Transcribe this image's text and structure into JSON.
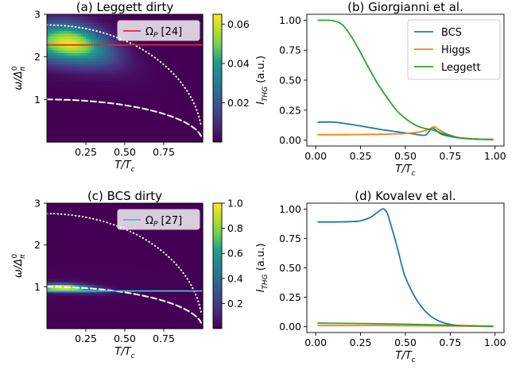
{
  "colors": {
    "bcs": "#1f77b4",
    "higgs": "#ff7f0e",
    "leggett": "#2ca02c",
    "omega_line_a": "#e0282a",
    "omega_line_c": "#40bfd6",
    "colormap": [
      "#440154",
      "#482777",
      "#3f4a8a",
      "#31678e",
      "#26838f",
      "#1f9d8a",
      "#6cce5a",
      "#b6de2b",
      "#fee825"
    ]
  },
  "chart_data": [
    {
      "id": "a",
      "type": "heatmap",
      "title": "(a) Leggett dirty",
      "xlabel": "T/T_c",
      "ylabel": "ω/Δ_π^0",
      "xlim": [
        0,
        1
      ],
      "ylim": [
        0,
        3
      ],
      "xticks": [
        "0.25",
        "0.50",
        "0.75"
      ],
      "xtick_values": [
        0.25,
        0.5,
        0.75
      ],
      "yticks": [
        "1",
        "2",
        "3"
      ],
      "ytick_values": [
        1,
        2,
        3
      ],
      "colorbar": {
        "ticks": [
          "0.02",
          "0.04",
          "0.06"
        ],
        "tick_values": [
          0.02,
          0.04,
          0.06
        ],
        "range": [
          0.0,
          0.065
        ]
      },
      "peak": {
        "T": 0.15,
        "omega": 2.35,
        "value": 0.065
      },
      "legend": {
        "label": "Ω_P [24]",
        "position": "top-right"
      },
      "omega_P": 2.28,
      "dotted_curve_omega0": 2.75,
      "dashed_curve_omega0": 1.0
    },
    {
      "id": "b",
      "type": "line",
      "title": "(b) Giorgianni et al.",
      "xlabel": "T/T_c",
      "ylabel": "I_THG (a.u.)",
      "xlim": [
        0,
        1
      ],
      "ylim": [
        0,
        1
      ],
      "xticks": [
        "0.00",
        "0.25",
        "0.50",
        "0.75",
        "1.00"
      ],
      "xtick_values": [
        0,
        0.25,
        0.5,
        0.75,
        1
      ],
      "yticks": [
        "0.00",
        "0.25",
        "0.50",
        "0.75",
        "1.00"
      ],
      "ytick_values": [
        0,
        0.25,
        0.5,
        0.75,
        1
      ],
      "legend_position": "top-right",
      "series": [
        {
          "name": "BCS",
          "color_key": "bcs",
          "x": [
            0.01,
            0.1,
            0.2,
            0.3,
            0.4,
            0.5,
            0.55,
            0.6,
            0.62,
            0.65,
            0.68,
            0.7,
            0.75,
            0.8,
            0.9,
            0.99
          ],
          "y": [
            0.15,
            0.15,
            0.13,
            0.105,
            0.08,
            0.06,
            0.05,
            0.04,
            0.05,
            0.1,
            0.07,
            0.05,
            0.03,
            0.018,
            0.008,
            0.005
          ]
        },
        {
          "name": "Higgs",
          "color_key": "higgs",
          "x": [
            0.01,
            0.1,
            0.2,
            0.3,
            0.4,
            0.5,
            0.55,
            0.6,
            0.63,
            0.66,
            0.69,
            0.72,
            0.75,
            0.8,
            0.9,
            0.99
          ],
          "y": [
            0.045,
            0.045,
            0.046,
            0.048,
            0.05,
            0.055,
            0.062,
            0.075,
            0.09,
            0.11,
            0.085,
            0.06,
            0.04,
            0.02,
            0.008,
            0.005
          ]
        },
        {
          "name": "Leggett",
          "color_key": "leggett",
          "x": [
            0.01,
            0.05,
            0.1,
            0.15,
            0.2,
            0.25,
            0.3,
            0.35,
            0.4,
            0.45,
            0.5,
            0.55,
            0.6,
            0.65,
            0.7,
            0.75,
            0.8,
            0.9,
            0.99
          ],
          "y": [
            1.0,
            1.0,
            0.995,
            0.96,
            0.86,
            0.73,
            0.59,
            0.46,
            0.35,
            0.25,
            0.18,
            0.13,
            0.1,
            0.085,
            0.06,
            0.04,
            0.02,
            0.008,
            0.005
          ]
        }
      ]
    },
    {
      "id": "c",
      "type": "heatmap",
      "title": "(c) BCS dirty",
      "xlabel": "T/T_c",
      "ylabel": "ω/Δ_π^0",
      "xlim": [
        0,
        1
      ],
      "ylim": [
        0,
        3
      ],
      "xticks": [
        "0.25",
        "0.50",
        "0.75"
      ],
      "xtick_values": [
        0.25,
        0.5,
        0.75
      ],
      "yticks": [
        "1",
        "2",
        "3"
      ],
      "ytick_values": [
        1,
        2,
        3
      ],
      "colorbar": {
        "ticks": [
          "0.2",
          "0.4",
          "0.6",
          "0.8",
          "1.0"
        ],
        "tick_values": [
          0.2,
          0.4,
          0.6,
          0.8,
          1.0
        ],
        "range": [
          0.0,
          1.0
        ]
      },
      "peak": {
        "T": 0.1,
        "omega": 1.0,
        "value": 1.0
      },
      "legend": {
        "label": "Ω_P [27]",
        "position": "top-right"
      },
      "omega_P": 0.9,
      "dotted_curve_omega0": 2.75,
      "dashed_curve_omega0": 1.0
    },
    {
      "id": "d",
      "type": "line",
      "title": "(d) Kovalev et al.",
      "xlabel": "T/T_c",
      "ylabel": "I_THG (a.u.)",
      "xlim": [
        0,
        1
      ],
      "ylim": [
        0,
        1
      ],
      "xticks": [
        "0.00",
        "0.25",
        "0.50",
        "0.75",
        "1.00"
      ],
      "xtick_values": [
        0,
        0.25,
        0.5,
        0.75,
        1
      ],
      "yticks": [
        "0.00",
        "0.25",
        "0.50",
        "0.75",
        "1.00"
      ],
      "ytick_values": [
        0,
        0.25,
        0.5,
        0.75,
        1
      ],
      "series": [
        {
          "name": "BCS",
          "color_key": "bcs",
          "x": [
            0.01,
            0.1,
            0.2,
            0.25,
            0.3,
            0.33,
            0.36,
            0.38,
            0.4,
            0.42,
            0.45,
            0.48,
            0.5,
            0.55,
            0.6,
            0.65,
            0.7,
            0.75,
            0.8,
            0.9,
            0.99
          ],
          "y": [
            0.89,
            0.89,
            0.893,
            0.9,
            0.925,
            0.955,
            0.99,
            1.0,
            0.96,
            0.86,
            0.7,
            0.52,
            0.42,
            0.26,
            0.15,
            0.08,
            0.04,
            0.02,
            0.01,
            0.005,
            0.003
          ]
        },
        {
          "name": "Higgs",
          "color_key": "higgs",
          "x": [
            0.01,
            0.2,
            0.4,
            0.6,
            0.8,
            0.99
          ],
          "y": [
            0.01,
            0.01,
            0.01,
            0.008,
            0.005,
            0.002
          ]
        },
        {
          "name": "Leggett",
          "color_key": "leggett",
          "x": [
            0.01,
            0.2,
            0.4,
            0.6,
            0.8,
            0.99
          ],
          "y": [
            0.03,
            0.028,
            0.024,
            0.018,
            0.01,
            0.003
          ]
        }
      ]
    }
  ]
}
